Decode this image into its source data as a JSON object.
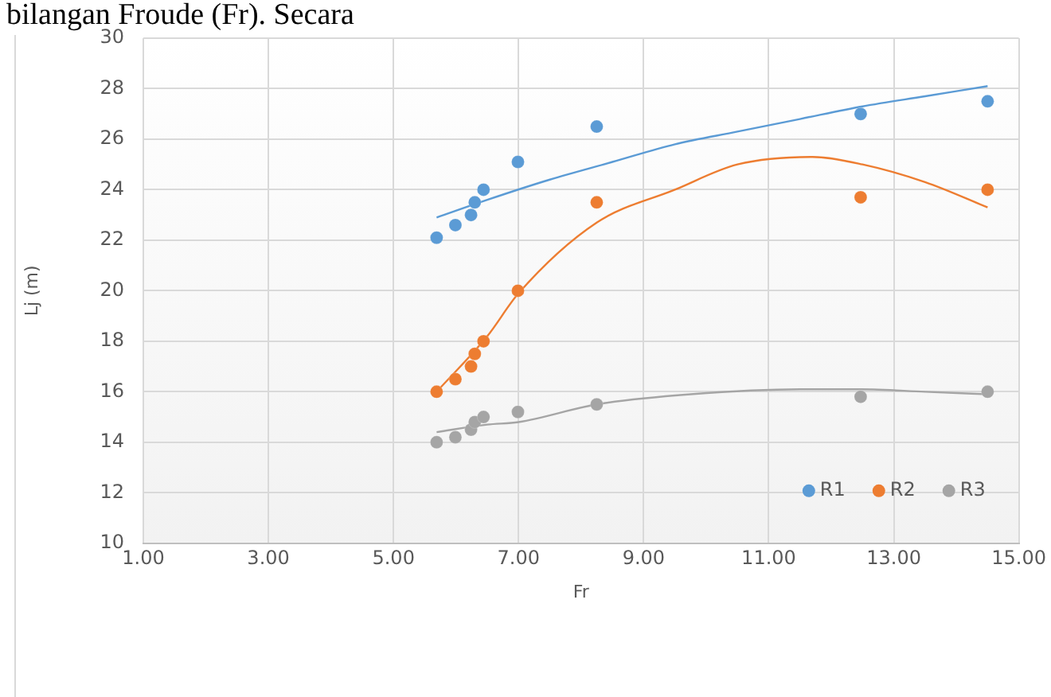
{
  "chart_data": {
    "type": "scatter",
    "xlabel": "Fr",
    "ylabel": "Lj (m)",
    "annotations": [
      "bilangan Froude (Fr). Secara"
    ],
    "xlim": [
      1,
      15
    ],
    "xticks": [
      {
        "value": 1,
        "label": "1.00"
      },
      {
        "value": 3,
        "label": "3.00"
      },
      {
        "value": 5,
        "label": "5.00"
      },
      {
        "value": 7,
        "label": "7.00"
      },
      {
        "value": 9,
        "label": "9.00"
      },
      {
        "value": 11,
        "label": "11.00"
      },
      {
        "value": 13,
        "label": "13.00"
      },
      {
        "value": 15,
        "label": "15.00"
      }
    ],
    "ylim": [
      10,
      30
    ],
    "yticks": [
      10,
      12,
      14,
      16,
      18,
      20,
      22,
      24,
      26,
      28,
      30
    ],
    "grid": true,
    "legend": "bottom right",
    "marker": "circle",
    "series": [
      {
        "name": "R1",
        "color": "#5b9bd5",
        "x": [
          5.69,
          5.99,
          6.24,
          6.3,
          6.44,
          6.99,
          8.25,
          12.47,
          14.5
        ],
        "values": [
          22.1,
          22.6,
          23.0,
          23.5,
          24.0,
          25.1,
          26.5,
          27.0,
          27.5
        ]
      },
      {
        "name": "R2",
        "color": "#ed7d31",
        "x": [
          5.69,
          5.99,
          6.24,
          6.3,
          6.44,
          6.99,
          8.25,
          12.47,
          14.5
        ],
        "values": [
          16.0,
          16.5,
          17.0,
          17.5,
          18.0,
          20.0,
          23.5,
          23.7,
          24.0
        ]
      },
      {
        "name": "R3",
        "color": "#a5a5a5",
        "x": [
          5.69,
          5.99,
          6.24,
          6.3,
          6.44,
          6.99,
          8.25,
          12.47,
          14.5
        ],
        "values": [
          14.0,
          14.2,
          14.5,
          14.8,
          15.0,
          15.2,
          15.5,
          15.8,
          16.0
        ]
      },
      {
        "type": "line",
        "marker": "none",
        "color": "#5b9bd5",
        "x": [
          5.69,
          6.5,
          7.5,
          8.5,
          9.5,
          10.5,
          11.5,
          12.5,
          13.5,
          14.5
        ],
        "values": [
          22.9,
          23.6,
          24.4,
          25.1,
          25.8,
          26.3,
          26.8,
          27.3,
          27.7,
          28.1
        ]
      },
      {
        "type": "line",
        "marker": "none",
        "color": "#ed7d31",
        "x": [
          5.69,
          6.5,
          7,
          8.25,
          9.5,
          10.5,
          11.7,
          12.5,
          13.5,
          14.5
        ],
        "values": [
          16.0,
          18.2,
          19.9,
          22.7,
          24.0,
          25.0,
          25.3,
          25.0,
          24.3,
          23.3
        ]
      },
      {
        "type": "line",
        "marker": "none",
        "color": "#a5a5a5",
        "x": [
          5.69,
          6.5,
          7,
          8.25,
          9.75,
          11.5,
          12.47,
          13.5,
          14.5
        ],
        "values": [
          14.4,
          14.7,
          14.8,
          15.5,
          15.9,
          16.1,
          16.1,
          16.0,
          15.9
        ]
      }
    ]
  }
}
